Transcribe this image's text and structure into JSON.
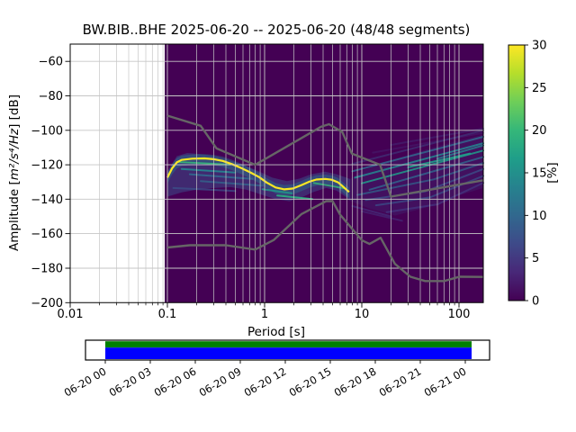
{
  "figure": {
    "title": "BW.BIB..BHE   2025-06-20 -- 2025-06-20  (48/48 segments)",
    "xlabel": "Period [s]",
    "ylabel_prefix": "Amplitude [",
    "ylabel_math": "m²/s⁴/Hz",
    "ylabel_suffix": "] [dB]",
    "colorbar_label": "[%]"
  },
  "chart_data": {
    "type": "heatmap",
    "title": "BW.BIB..BHE   2025-06-20 -- 2025-06-20  (48/48 segments)",
    "station_id": "BW.BIB..BHE",
    "date_range": "2025-06-20 -- 2025-06-20",
    "segments": "48/48",
    "xlabel": "Period [s]",
    "ylabel": "Amplitude [m²/s⁴/Hz] [dB]",
    "x_scale": "log",
    "xlim": [
      0.01,
      178
    ],
    "ylim": [
      -200,
      -50
    ],
    "grid": true,
    "background_color": "#440154",
    "grid_color": "#c6c6c6",
    "psd_data_period_range": [
      0.1,
      178
    ],
    "x_ticks": [
      {
        "v": 0.01,
        "label": "0.01"
      },
      {
        "v": 0.1,
        "label": "0.1"
      },
      {
        "v": 1,
        "label": "1"
      },
      {
        "v": 10,
        "label": "10"
      },
      {
        "v": 100,
        "label": "100"
      }
    ],
    "y_ticks": [
      {
        "v": -60,
        "label": "−60"
      },
      {
        "v": -80,
        "label": "−80"
      },
      {
        "v": -100,
        "label": "−100"
      },
      {
        "v": -120,
        "label": "−120"
      },
      {
        "v": -140,
        "label": "−140"
      },
      {
        "v": -160,
        "label": "−160"
      },
      {
        "v": -180,
        "label": "−180"
      },
      {
        "v": -200,
        "label": "−200"
      }
    ],
    "y_gridlines": [
      -60,
      -80,
      -100,
      -120,
      -140,
      -160,
      -180
    ],
    "colorbar": {
      "label": "[%]",
      "min": 0,
      "max": 30,
      "ticks": [
        {
          "v": 0,
          "label": "0"
        },
        {
          "v": 5,
          "label": "5"
        },
        {
          "v": 10,
          "label": "10"
        },
        {
          "v": 15,
          "label": "15"
        },
        {
          "v": 20,
          "label": "20"
        },
        {
          "v": 25,
          "label": "25"
        },
        {
          "v": 30,
          "label": "30"
        }
      ],
      "colormap": "viridis",
      "stops": [
        "#440154",
        "#482878",
        "#3e4a89",
        "#31688e",
        "#26828e",
        "#1f9e89",
        "#35b779",
        "#6ece58",
        "#b5de2b",
        "#fde725"
      ]
    },
    "mode_curve": [
      [
        0.1,
        -127.5
      ],
      [
        0.112,
        -122.0
      ],
      [
        0.125,
        -118.6
      ],
      [
        0.14,
        -117.2
      ],
      [
        0.18,
        -116.5
      ],
      [
        0.24,
        -116.3
      ],
      [
        0.3,
        -116.8
      ],
      [
        0.37,
        -117.8
      ],
      [
        0.46,
        -119.6
      ],
      [
        0.57,
        -121.8
      ],
      [
        0.7,
        -124.2
      ],
      [
        0.88,
        -127.2
      ],
      [
        1.05,
        -130.3
      ],
      [
        1.3,
        -133.2
      ],
      [
        1.6,
        -134.3
      ],
      [
        1.95,
        -133.8
      ],
      [
        2.4,
        -131.8
      ],
      [
        2.9,
        -129.8
      ],
      [
        3.4,
        -128.6
      ],
      [
        4.2,
        -128.2
      ],
      [
        4.9,
        -128.7
      ],
      [
        5.7,
        -130.2
      ],
      [
        6.5,
        -133.0
      ],
      [
        7.4,
        -135.8
      ]
    ],
    "spread_upper": [
      [
        0.1,
        -124.0
      ],
      [
        0.125,
        -115.0
      ],
      [
        0.16,
        -113.2
      ],
      [
        0.22,
        -113.8
      ],
      [
        0.3,
        -115.0
      ],
      [
        0.4,
        -116.8
      ],
      [
        0.6,
        -120.0
      ],
      [
        0.85,
        -123.5
      ],
      [
        1.2,
        -127.5
      ],
      [
        1.7,
        -129.5
      ],
      [
        2.3,
        -128.0
      ],
      [
        3.0,
        -125.5
      ],
      [
        4.2,
        -124.0
      ],
      [
        5.5,
        -125.5
      ],
      [
        6.8,
        -127.3
      ],
      [
        7.6,
        -128.3
      ]
    ],
    "spread_lower": [
      [
        0.1,
        -138.5
      ],
      [
        0.14,
        -136.0
      ],
      [
        0.2,
        -134.5
      ],
      [
        0.3,
        -133.5
      ],
      [
        0.45,
        -133.0
      ],
      [
        0.65,
        -134.5
      ],
      [
        0.95,
        -137.5
      ],
      [
        1.3,
        -140.0
      ],
      [
        1.8,
        -141.2
      ],
      [
        2.4,
        -139.0
      ],
      [
        3.2,
        -135.8
      ],
      [
        4.3,
        -133.5
      ],
      [
        5.5,
        -135.0
      ],
      [
        6.8,
        -138.5
      ],
      [
        7.6,
        -141.0
      ]
    ],
    "fan_upper": [
      [
        7.6,
        -128.3
      ],
      [
        10,
        -123.5
      ],
      [
        20,
        -117.5
      ],
      [
        50,
        -110.5
      ],
      [
        100,
        -106.0
      ],
      [
        178,
        -102.5
      ]
    ],
    "fan_lower": [
      [
        7.6,
        -141.0
      ],
      [
        12,
        -145.5
      ],
      [
        22,
        -149.5
      ],
      [
        45,
        -145.0
      ],
      [
        90,
        -138.5
      ],
      [
        178,
        -133.5
      ]
    ],
    "streaks": [
      {
        "p": [
          [
            0.13,
            -118.4
          ],
          [
            0.45,
            -119.9
          ]
        ],
        "c": "#35b779",
        "o": 0.9,
        "w": 1.8
      },
      {
        "p": [
          [
            0.14,
            -122.5
          ],
          [
            0.5,
            -124.5
          ]
        ],
        "c": "#26828e",
        "o": 0.95,
        "w": 2
      },
      {
        "p": [
          [
            0.17,
            -125.5
          ],
          [
            0.75,
            -128.2
          ]
        ],
        "c": "#31688e",
        "o": 0.9,
        "w": 2
      },
      {
        "p": [
          [
            0.22,
            -129.5
          ],
          [
            0.95,
            -132.2
          ]
        ],
        "c": "#31688e",
        "o": 0.75,
        "w": 2
      },
      {
        "p": [
          [
            0.115,
            -133.5
          ],
          [
            0.5,
            -135.2
          ]
        ],
        "c": "#3b528b",
        "o": 0.7,
        "w": 2
      },
      {
        "p": [
          [
            0.95,
            -134.2
          ],
          [
            1.9,
            -136.6
          ]
        ],
        "c": "#1f9e89",
        "o": 0.8,
        "w": 2
      },
      {
        "p": [
          [
            1.35,
            -137.9
          ],
          [
            3.1,
            -139.9
          ]
        ],
        "c": "#2ab07f",
        "o": 0.95,
        "w": 2
      },
      {
        "p": [
          [
            3.2,
            -130.6
          ],
          [
            6.5,
            -133.6
          ]
        ],
        "c": "#35b779",
        "o": 0.85,
        "w": 1.8
      },
      {
        "p": [
          [
            8,
            -123.8
          ],
          [
            178,
            -103.8
          ]
        ],
        "c": "#31688e",
        "o": 0.85,
        "w": 2
      },
      {
        "p": [
          [
            8.5,
            -127.5
          ],
          [
            178,
            -107.5
          ]
        ],
        "c": "#26828e",
        "o": 0.9,
        "w": 2
      },
      {
        "p": [
          [
            10,
            -130.8
          ],
          [
            178,
            -111.8
          ]
        ],
        "c": "#1f9e89",
        "o": 0.85,
        "w": 2
      },
      {
        "p": [
          [
            12,
            -134.5
          ],
          [
            178,
            -115.5
          ]
        ],
        "c": "#31688e",
        "o": 0.8,
        "w": 2
      },
      {
        "p": [
          [
            9,
            -137.5
          ],
          [
            55,
            -128.5
          ],
          [
            178,
            -119.0
          ]
        ],
        "c": "#31688e",
        "o": 0.7,
        "w": 2
      },
      {
        "p": [
          [
            11,
            -140.5
          ],
          [
            45,
            -135.5
          ],
          [
            178,
            -122.5
          ]
        ],
        "c": "#3b528b",
        "o": 0.75,
        "w": 2
      },
      {
        "p": [
          [
            14,
            -143.5
          ],
          [
            50,
            -139.0
          ],
          [
            178,
            -126.5
          ]
        ],
        "c": "#3b528b",
        "o": 0.7,
        "w": 2
      },
      {
        "p": [
          [
            18,
            -147.5
          ],
          [
            60,
            -143.0
          ],
          [
            178,
            -130.5
          ]
        ],
        "c": "#443983",
        "o": 0.7,
        "w": 2
      },
      {
        "p": [
          [
            8,
            -119.5
          ],
          [
            178,
            -100.0
          ]
        ],
        "c": "#3b528b",
        "o": 0.45,
        "w": 2
      },
      {
        "p": [
          [
            20,
            -108.5
          ],
          [
            178,
            -99.0
          ]
        ],
        "c": "#443983",
        "o": 0.4,
        "w": 2
      },
      {
        "p": [
          [
            13,
            -113.0
          ],
          [
            178,
            -101.5
          ]
        ],
        "c": "#443983",
        "o": 0.3,
        "w": 2
      },
      {
        "p": [
          [
            30,
            -121.5
          ],
          [
            130,
            -113.5
          ]
        ],
        "c": "#1f9e89",
        "o": 0.9,
        "w": 2
      },
      {
        "p": [
          [
            60,
            -116.5
          ],
          [
            178,
            -108.8
          ]
        ],
        "c": "#26828e",
        "o": 0.8,
        "w": 2
      },
      {
        "p": [
          [
            8,
            -144.0
          ],
          [
            20,
            -150.0
          ]
        ],
        "c": "#443983",
        "o": 0.6,
        "w": 2
      },
      {
        "p": [
          [
            10,
            -147.0
          ],
          [
            26,
            -152.5
          ]
        ],
        "c": "#443983",
        "o": 0.5,
        "w": 2
      }
    ],
    "noise_models": {
      "color": "#666666",
      "nhnm": [
        [
          0.1,
          -91.5
        ],
        [
          0.22,
          -97.4
        ],
        [
          0.32,
          -110.5
        ],
        [
          0.8,
          -120.0
        ],
        [
          3.8,
          -98.0
        ],
        [
          4.6,
          -96.5
        ],
        [
          6.3,
          -101.0
        ],
        [
          7.9,
          -113.5
        ],
        [
          15.4,
          -120.0
        ],
        [
          20.0,
          -138.5
        ],
        [
          178.0,
          -129.0
        ]
      ],
      "nlnm": [
        [
          0.1,
          -168.0
        ],
        [
          0.17,
          -166.7
        ],
        [
          0.4,
          -166.7
        ],
        [
          0.8,
          -169.2
        ],
        [
          1.24,
          -163.7
        ],
        [
          2.4,
          -148.6
        ],
        [
          4.3,
          -141.1
        ],
        [
          5.0,
          -141.1
        ],
        [
          6.0,
          -149.0
        ],
        [
          10.0,
          -163.8
        ],
        [
          12.0,
          -166.0
        ],
        [
          15.6,
          -162.4
        ],
        [
          21.9,
          -177.5
        ],
        [
          31.6,
          -185.0
        ],
        [
          45.0,
          -187.5
        ],
        [
          70.0,
          -187.5
        ],
        [
          101.0,
          -185.0
        ],
        [
          178.0,
          -185.1
        ]
      ]
    }
  },
  "timeline": {
    "tick_labels": [
      "06-20 00",
      "06-20 03",
      "06-20 06",
      "06-20 09",
      "06-20 12",
      "06-20 15",
      "06-20 18",
      "06-20 21",
      "06-21 00"
    ],
    "coverage_top_color": "#008000",
    "coverage_bottom_color": "#0000ff"
  }
}
